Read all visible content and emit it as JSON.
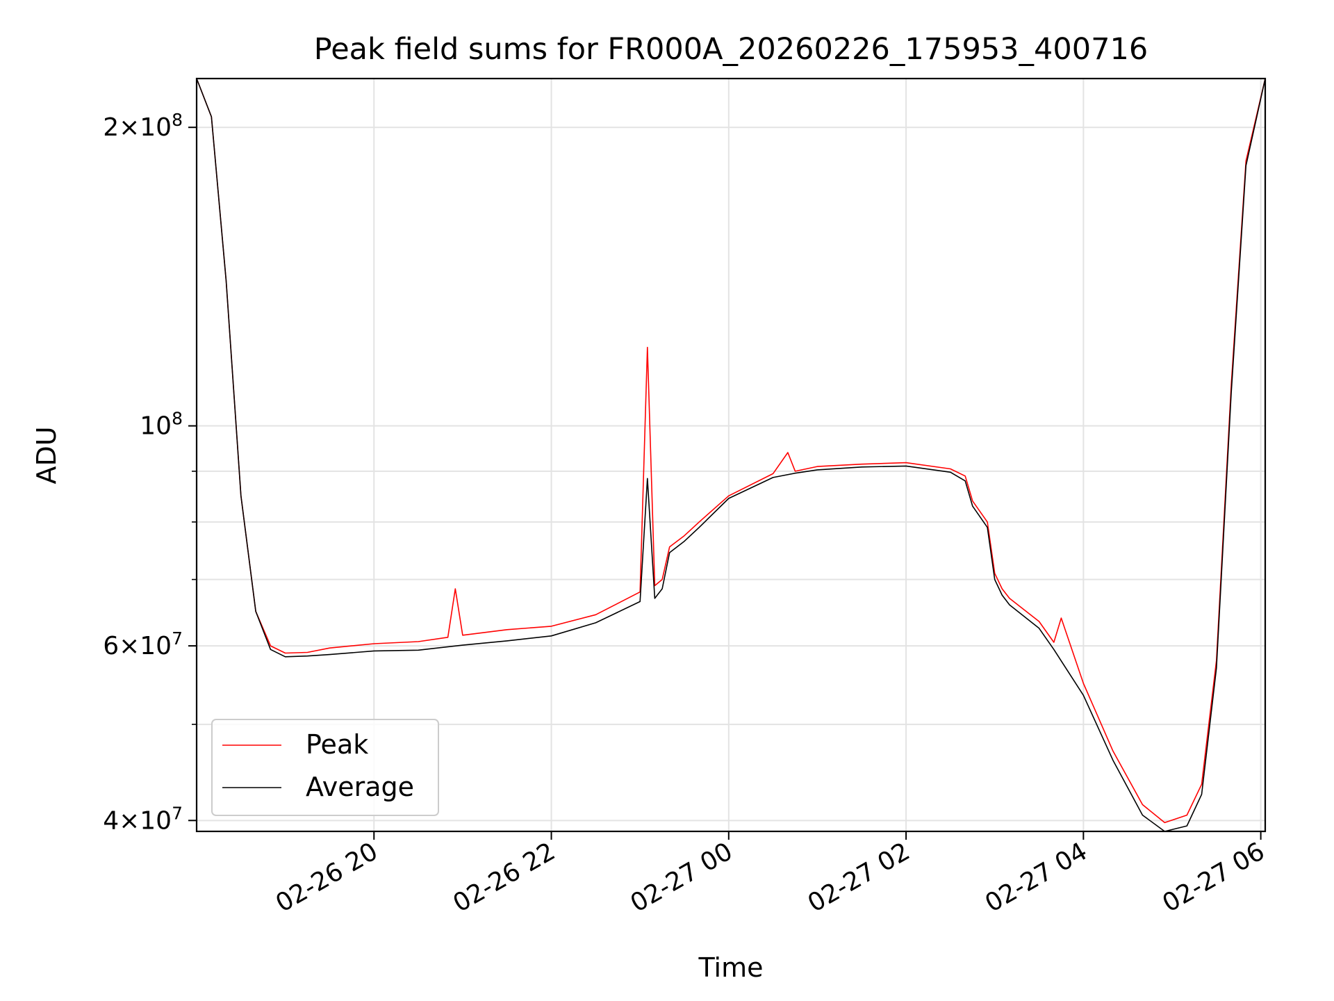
{
  "chart_data": {
    "type": "line",
    "title": "Peak field sums for FR000A_20260226_175953_400716",
    "xlabel": "Time",
    "ylabel": "ADU",
    "yscale": "log",
    "grid": true,
    "legend_placement": "lower-left",
    "xlim": [
      "2026-02-26 18:00",
      "2026-02-27 06:03"
    ],
    "ylim": [
      39000000,
      224000000
    ],
    "x_ticks": [
      {
        "value": "2026-02-26 20:00",
        "label": "02-26 20"
      },
      {
        "value": "2026-02-26 22:00",
        "label": "02-26 22"
      },
      {
        "value": "2026-02-27 00:00",
        "label": "02-27 00"
      },
      {
        "value": "2026-02-27 02:00",
        "label": "02-27 02"
      },
      {
        "value": "2026-02-27 04:00",
        "label": "02-27 04"
      },
      {
        "value": "2026-02-27 06:00",
        "label": "02-27 06"
      }
    ],
    "y_ticks": [
      {
        "value": 40000000,
        "base": "4",
        "mult": "×",
        "pow": "10",
        "exp": "7"
      },
      {
        "value": 60000000,
        "base": "6",
        "mult": "×",
        "pow": "10",
        "exp": "7"
      },
      {
        "value": 100000000,
        "base": "",
        "mult": "",
        "pow": "10",
        "exp": "8"
      },
      {
        "value": 200000000,
        "base": "2",
        "mult": "×",
        "pow": "10",
        "exp": "8"
      }
    ],
    "y_minor_ticks": [
      50000000,
      70000000,
      80000000,
      90000000
    ],
    "series": [
      {
        "name": "Peak",
        "color": "#ff0000",
        "x": [
          "2026-02-26 18:00",
          "2026-02-26 18:10",
          "2026-02-26 18:20",
          "2026-02-26 18:30",
          "2026-02-26 18:40",
          "2026-02-26 18:50",
          "2026-02-26 19:00",
          "2026-02-26 19:15",
          "2026-02-26 19:30",
          "2026-02-26 20:00",
          "2026-02-26 20:30",
          "2026-02-26 20:50",
          "2026-02-26 20:55",
          "2026-02-26 21:00",
          "2026-02-26 21:30",
          "2026-02-26 22:00",
          "2026-02-26 22:30",
          "2026-02-26 23:00",
          "2026-02-26 23:05",
          "2026-02-26 23:10",
          "2026-02-26 23:15",
          "2026-02-26 23:20",
          "2026-02-26 23:30",
          "2026-02-26 23:40",
          "2026-02-27 00:00",
          "2026-02-27 00:30",
          "2026-02-27 00:40",
          "2026-02-27 00:45",
          "2026-02-27 01:00",
          "2026-02-27 01:30",
          "2026-02-27 02:00",
          "2026-02-27 02:30",
          "2026-02-27 02:40",
          "2026-02-27 02:45",
          "2026-02-27 02:55",
          "2026-02-27 03:00",
          "2026-02-27 03:05",
          "2026-02-27 03:10",
          "2026-02-27 03:30",
          "2026-02-27 03:40",
          "2026-02-27 03:45",
          "2026-02-27 04:00",
          "2026-02-27 04:20",
          "2026-02-27 04:40",
          "2026-02-27 04:55",
          "2026-02-27 05:10",
          "2026-02-27 05:20",
          "2026-02-27 05:30",
          "2026-02-27 05:40",
          "2026-02-27 05:50",
          "2026-02-27 06:03"
        ],
        "y": [
          224000000,
          205000000,
          140000000,
          85000000,
          65000000,
          60000000,
          59000000,
          59100000,
          59700000,
          60300000,
          60600000,
          61200000,
          68500000,
          61500000,
          62300000,
          62800000,
          64500000,
          68000000,
          120000000,
          69000000,
          70000000,
          75500000,
          77500000,
          80000000,
          85000000,
          89500000,
          94000000,
          90000000,
          91000000,
          91500000,
          91800000,
          90500000,
          89000000,
          84000000,
          80000000,
          71000000,
          68500000,
          67000000,
          63500000,
          60500000,
          64000000,
          55000000,
          47000000,
          41500000,
          39800000,
          40500000,
          43500000,
          58000000,
          110000000,
          185000000,
          224000000
        ]
      },
      {
        "name": "Average",
        "color": "#000000",
        "x": [
          "2026-02-26 18:00",
          "2026-02-26 18:10",
          "2026-02-26 18:20",
          "2026-02-26 18:30",
          "2026-02-26 18:40",
          "2026-02-26 18:50",
          "2026-02-26 19:00",
          "2026-02-26 19:15",
          "2026-02-26 19:30",
          "2026-02-26 20:00",
          "2026-02-26 20:30",
          "2026-02-26 21:00",
          "2026-02-26 21:30",
          "2026-02-26 22:00",
          "2026-02-26 22:30",
          "2026-02-26 23:00",
          "2026-02-26 23:05",
          "2026-02-26 23:10",
          "2026-02-26 23:15",
          "2026-02-26 23:20",
          "2026-02-26 23:30",
          "2026-02-26 23:40",
          "2026-02-27 00:00",
          "2026-02-27 00:30",
          "2026-02-27 00:45",
          "2026-02-27 01:00",
          "2026-02-27 01:30",
          "2026-02-27 02:00",
          "2026-02-27 02:30",
          "2026-02-27 02:40",
          "2026-02-27 02:45",
          "2026-02-27 02:55",
          "2026-02-27 03:00",
          "2026-02-27 03:05",
          "2026-02-27 03:10",
          "2026-02-27 03:30",
          "2026-02-27 03:40",
          "2026-02-27 04:00",
          "2026-02-27 04:20",
          "2026-02-27 04:40",
          "2026-02-27 04:55",
          "2026-02-27 05:10",
          "2026-02-27 05:20",
          "2026-02-27 05:30",
          "2026-02-27 05:40",
          "2026-02-27 05:50",
          "2026-02-27 06:03"
        ],
        "y": [
          224000000,
          205000000,
          140000000,
          85000000,
          65000000,
          59500000,
          58500000,
          58600000,
          58800000,
          59300000,
          59400000,
          60100000,
          60700000,
          61400000,
          63300000,
          66500000,
          88500000,
          67000000,
          68500000,
          74500000,
          76500000,
          79000000,
          84500000,
          88700000,
          89600000,
          90300000,
          90900000,
          91100000,
          89800000,
          88000000,
          83000000,
          79000000,
          70000000,
          67500000,
          66000000,
          62500000,
          59500000,
          53500000,
          46000000,
          40500000,
          39000000,
          39500000,
          42500000,
          57000000,
          108000000,
          183000000,
          224000000
        ]
      }
    ]
  }
}
